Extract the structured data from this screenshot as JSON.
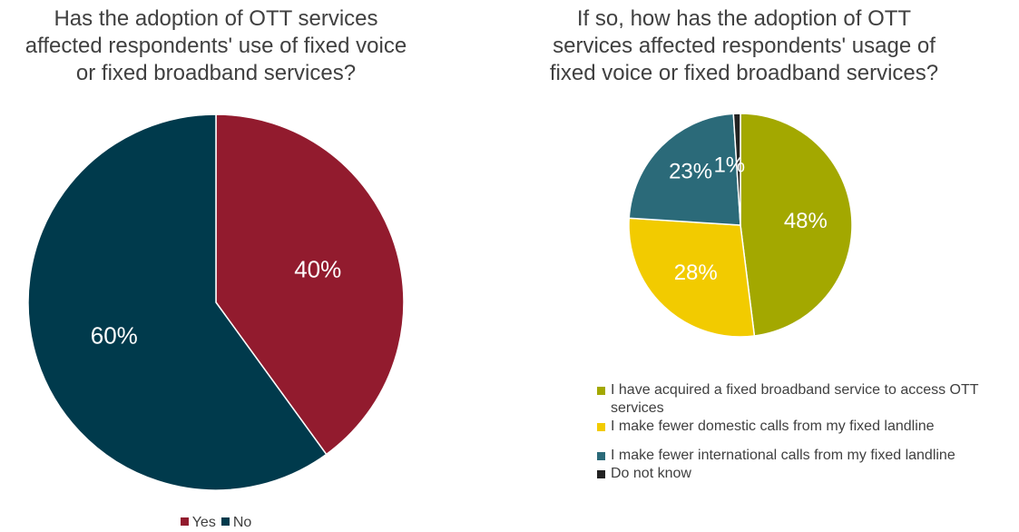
{
  "chart_data": [
    {
      "type": "pie",
      "title": "Has the adoption of OTT services\naffected respondents' use of fixed voice\nor fixed broadband services?",
      "categories": [
        "Yes",
        "No"
      ],
      "values": [
        40,
        60
      ],
      "data_labels": [
        "40%",
        "60%"
      ],
      "colors": [
        "#921B2E",
        "#003A4C"
      ],
      "legend": {
        "position": "bottom",
        "entries": [
          "Yes",
          "No"
        ]
      }
    },
    {
      "type": "pie",
      "title": "If so, how has the adoption of OTT\nservices affected respondents' usage of\nfixed voice or fixed broadband services?",
      "categories": [
        "I have acquired a fixed broadband service to access OTT services",
        "I make fewer domestic calls from my fixed landline",
        "I make fewer international calls from my fixed landline",
        "Do not know"
      ],
      "values": [
        48,
        28,
        23,
        1
      ],
      "data_labels": [
        "48%",
        "28%",
        "23%",
        "1%"
      ],
      "colors": [
        "#A3A800",
        "#F2CB00",
        "#2B6A79",
        "#222222"
      ],
      "legend": {
        "position": "bottom",
        "entries": [
          "I have acquired a fixed broadband service to access OTT services",
          "I make fewer domestic calls from my fixed landline",
          "I make fewer international calls from my fixed landline",
          "Do not know"
        ]
      }
    }
  ]
}
